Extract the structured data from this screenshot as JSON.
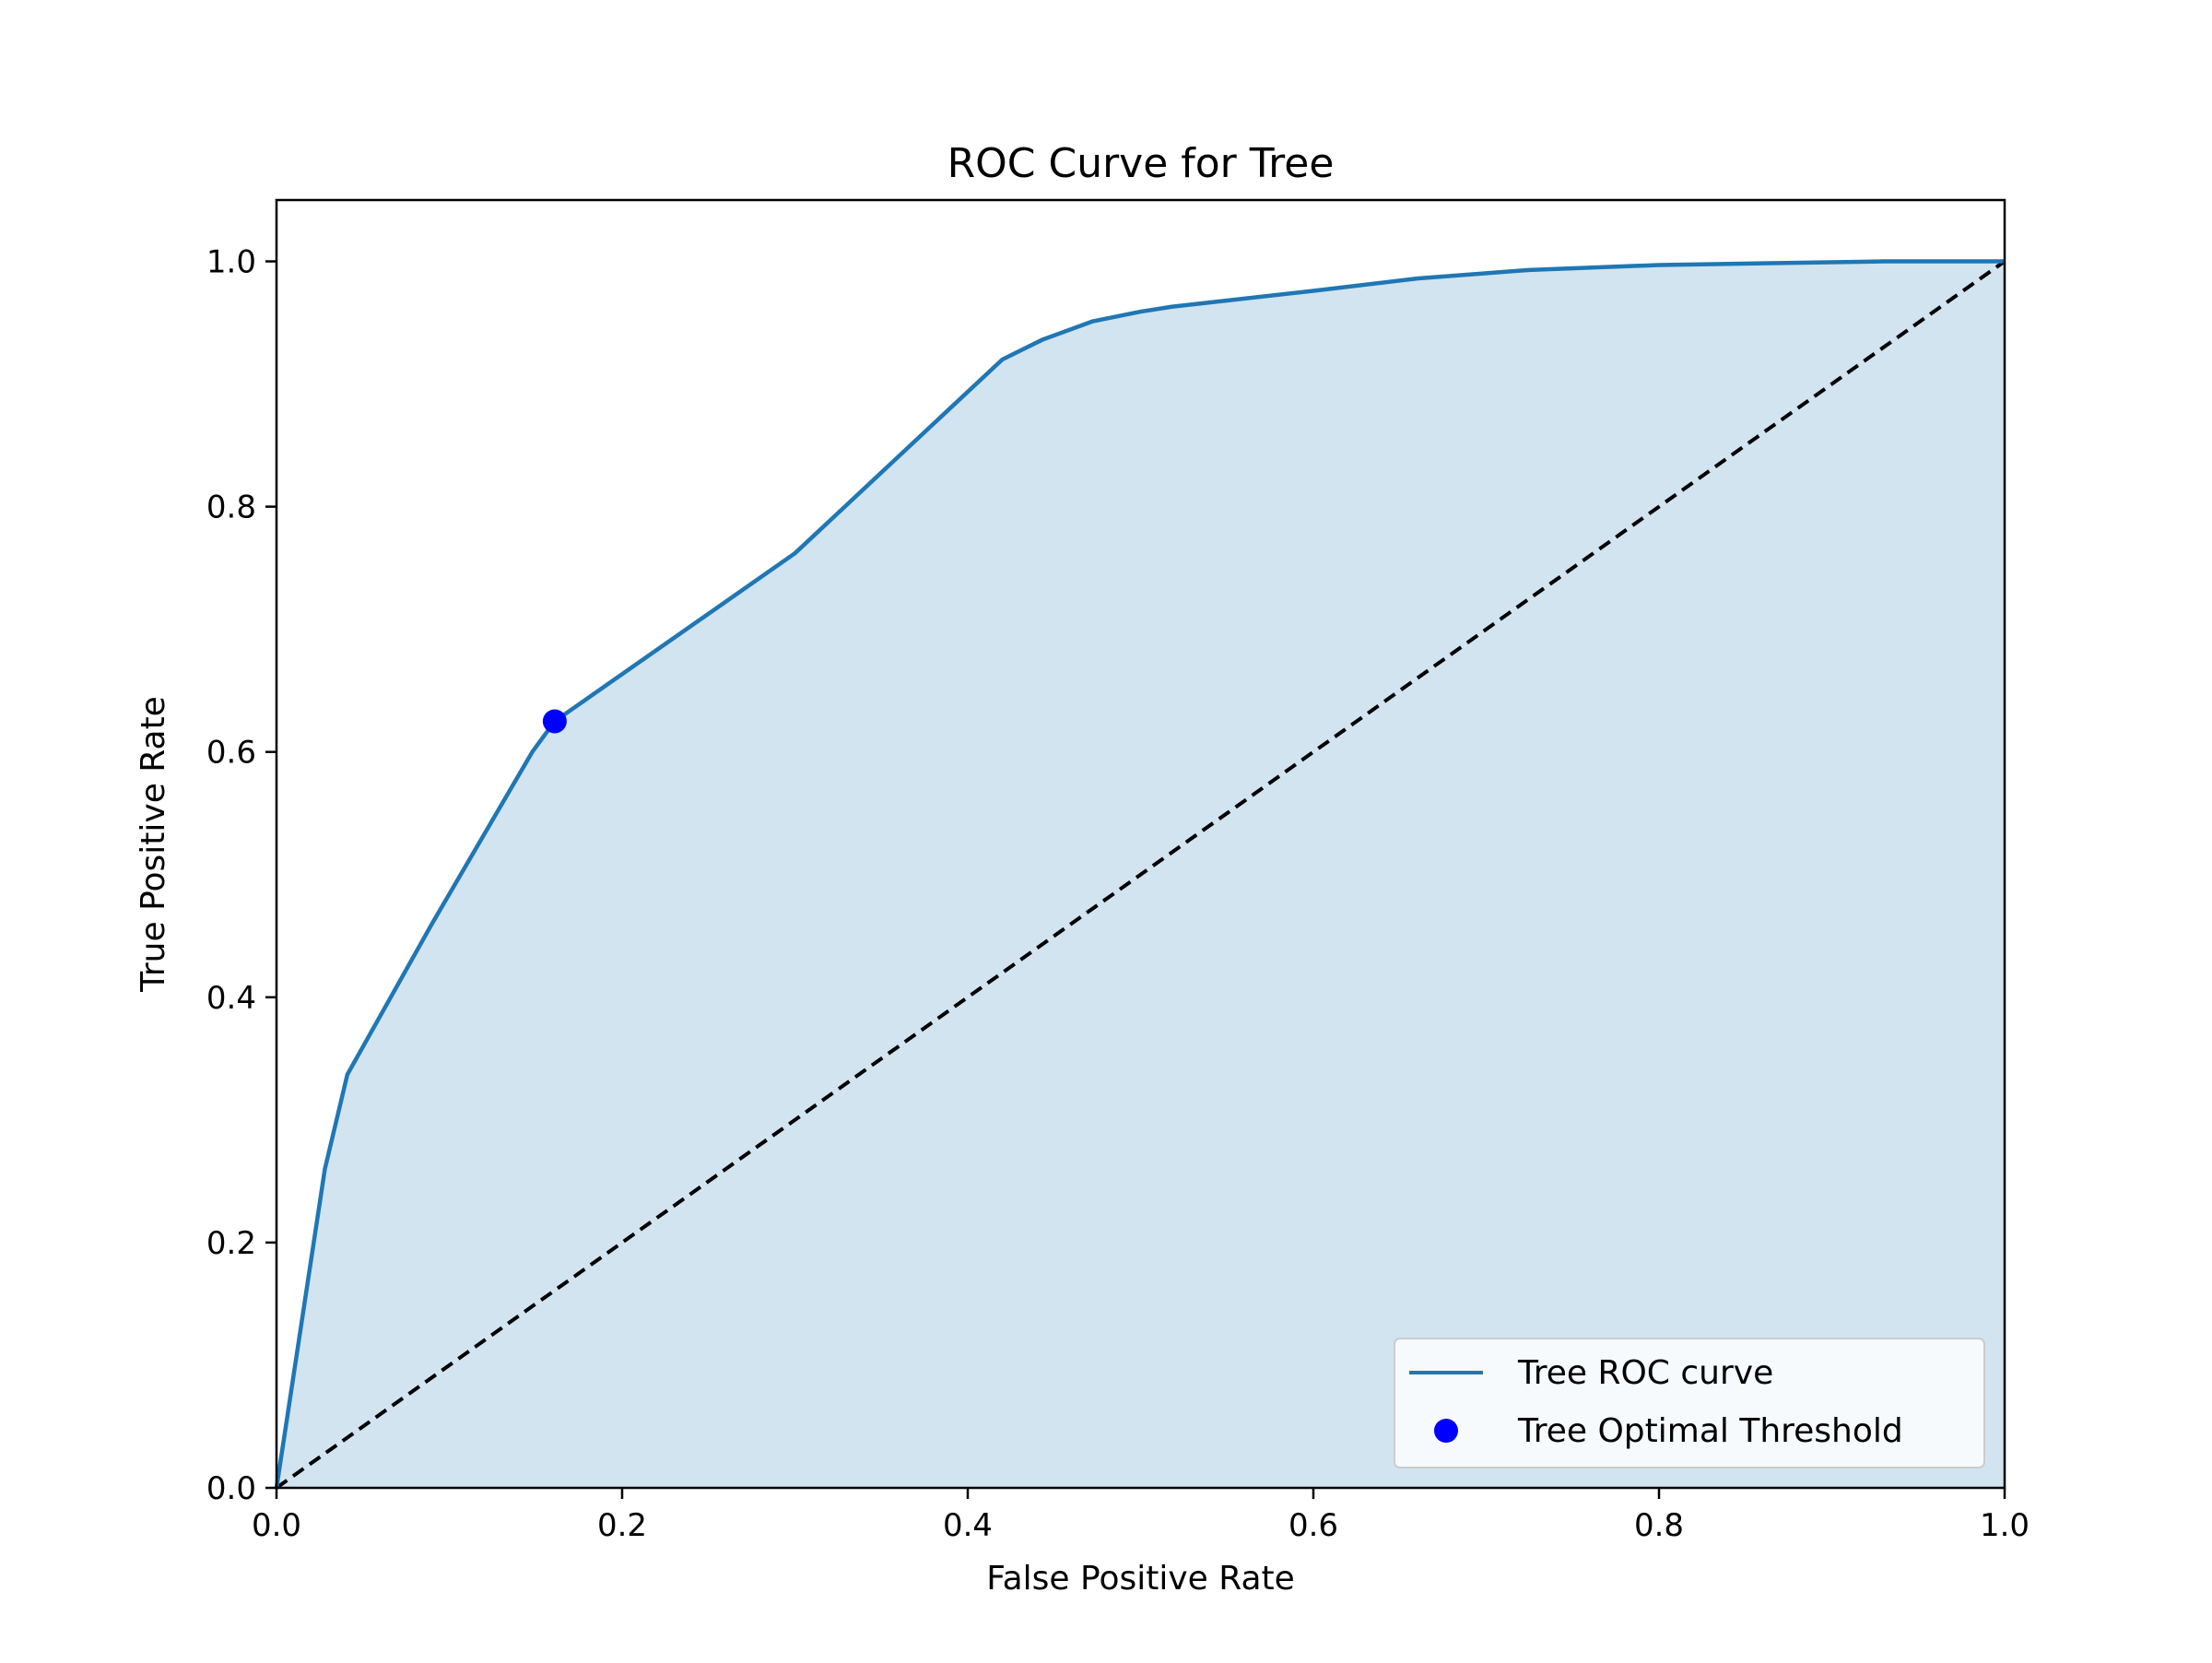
{
  "chart_data": {
    "type": "line",
    "title": "ROC Curve for Tree",
    "xlabel": "False Positive Rate",
    "ylabel": "True Positive Rate",
    "xlim": [
      0.0,
      1.0
    ],
    "ylim": [
      0.0,
      1.05
    ],
    "xticks": [
      0.0,
      0.2,
      0.4,
      0.6,
      0.8,
      1.0
    ],
    "yticks": [
      0.0,
      0.2,
      0.4,
      0.6,
      0.8,
      1.0
    ],
    "xtick_labels": [
      "0.0",
      "0.2",
      "0.4",
      "0.6",
      "0.8",
      "1.0"
    ],
    "ytick_labels": [
      "0.0",
      "0.2",
      "0.4",
      "0.6",
      "0.8",
      "1.0"
    ],
    "grid": false,
    "legend_position": "lower-right",
    "series": [
      {
        "name": "Tree ROC curve",
        "color": "#1f77b4",
        "fill_color": "#1f77b4",
        "fill_opacity": 0.2,
        "x": [
          0.0,
          0.028,
          0.041,
          0.09,
          0.148,
          0.161,
          0.3,
          0.42,
          0.443,
          0.472,
          0.5,
          0.518,
          0.6,
          0.66,
          0.725,
          0.8,
          0.93,
          1.0
        ],
        "y": [
          0.0,
          0.26,
          0.337,
          0.46,
          0.6,
          0.625,
          0.762,
          0.92,
          0.936,
          0.951,
          0.959,
          0.963,
          0.976,
          0.986,
          0.993,
          0.997,
          1.0,
          1.0
        ]
      },
      {
        "name": "Tree Optimal Threshold",
        "type": "point",
        "color": "#0000ff",
        "x": [
          0.161
        ],
        "y": [
          0.625
        ]
      }
    ],
    "reference_line": {
      "x": [
        0.0,
        1.0
      ],
      "y": [
        0.0,
        1.0
      ],
      "color": "#000000",
      "style": "dashed"
    }
  }
}
